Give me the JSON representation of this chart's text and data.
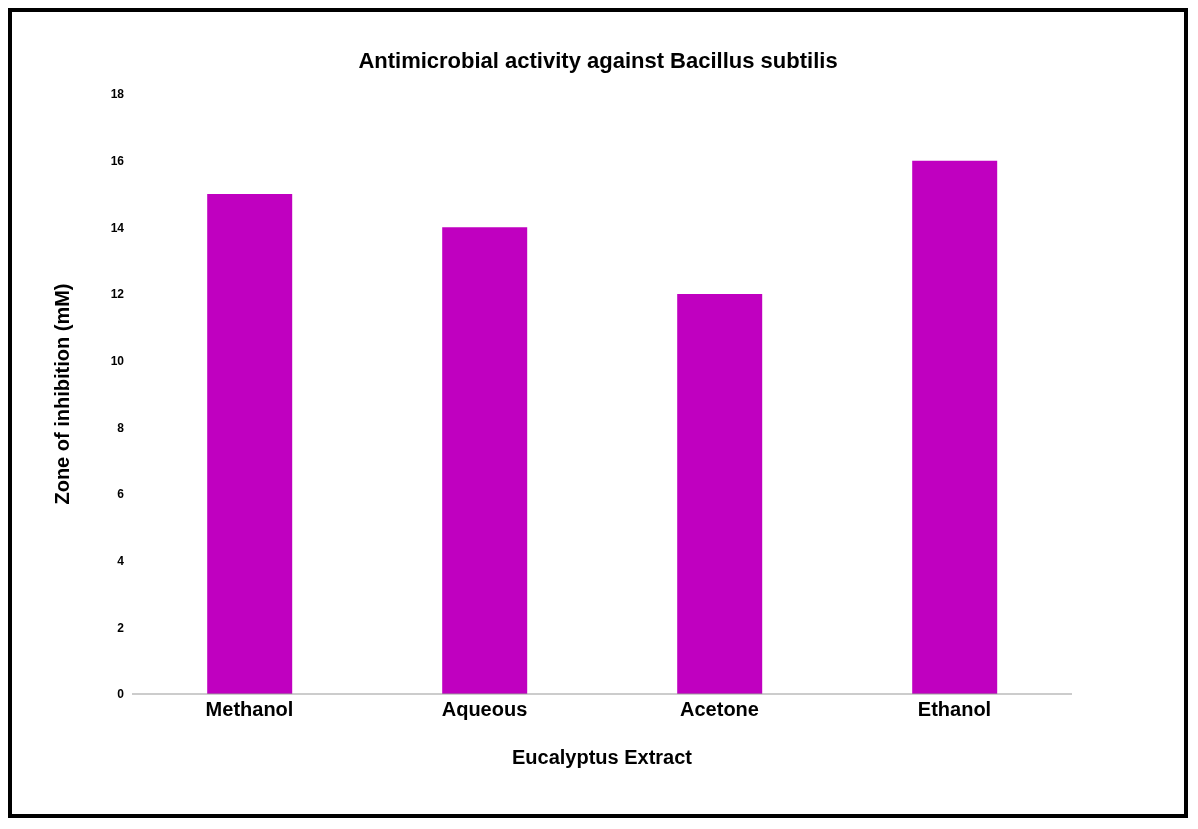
{
  "chart_data": {
    "type": "bar",
    "title": "Antimicrobial activity against Bacillus subtilis",
    "xlabel": "Eucalyptus Extract",
    "ylabel": "Zone of inhibition (mM)",
    "categories": [
      "Methanol",
      "Aqueous",
      "Acetone",
      "Ethanol"
    ],
    "values": [
      15,
      14,
      12,
      16
    ],
    "color": "#c000c0",
    "ylim": [
      0,
      18
    ],
    "yticks": [
      0,
      2,
      4,
      6,
      8,
      10,
      12,
      14,
      16,
      18
    ],
    "grid": false,
    "legend": false
  }
}
